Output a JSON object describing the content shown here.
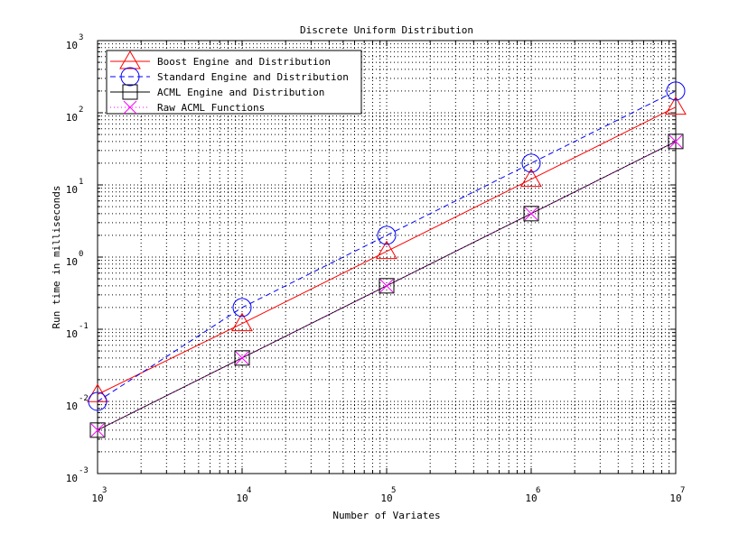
{
  "chart_data": {
    "type": "line",
    "title": "Discrete Uniform Distribution",
    "xlabel": "Number of Variates",
    "ylabel": "Run time in milliseconds",
    "xscale": "log",
    "yscale": "log",
    "xlim": [
      1000,
      10000000
    ],
    "ylim": [
      0.001,
      1000
    ],
    "grid": true,
    "legend_position": "top-left",
    "x_ticks": [
      {
        "value": 1000,
        "base": "10",
        "exp": "3"
      },
      {
        "value": 10000,
        "base": "10",
        "exp": "4"
      },
      {
        "value": 100000,
        "base": "10",
        "exp": "5"
      },
      {
        "value": 1000000,
        "base": "10",
        "exp": "6"
      },
      {
        "value": 10000000,
        "base": "10",
        "exp": "7"
      }
    ],
    "y_ticks": [
      {
        "value": 0.001,
        "base": "10",
        "exp": "-3"
      },
      {
        "value": 0.01,
        "base": "10",
        "exp": "-2"
      },
      {
        "value": 0.1,
        "base": "10",
        "exp": "-1"
      },
      {
        "value": 1,
        "base": "10",
        "exp": "0"
      },
      {
        "value": 10,
        "base": "10",
        "exp": "1"
      },
      {
        "value": 100,
        "base": "10",
        "exp": "2"
      },
      {
        "value": 1000,
        "base": "10",
        "exp": "3"
      }
    ],
    "x": [
      1000,
      10000,
      100000,
      1000000,
      10000000
    ],
    "series": [
      {
        "name": "Boost Engine and Distribution",
        "color": "#ff0000",
        "dash": "solid",
        "marker": "triangle",
        "values": [
          0.0125,
          0.12,
          1.2,
          12,
          120
        ]
      },
      {
        "name": "Standard Engine and Distribution",
        "color": "#0000ff",
        "dash": "dashed",
        "marker": "circle",
        "values": [
          0.01,
          0.2,
          2,
          20,
          200
        ]
      },
      {
        "name": "ACML Engine and Distribution",
        "color": "#000000",
        "dash": "solid",
        "marker": "square",
        "values": [
          0.004,
          0.04,
          0.4,
          4,
          40
        ]
      },
      {
        "name": "Raw ACML Functions",
        "color": "#ff00ff",
        "dash": "dotted",
        "marker": "x",
        "values": [
          0.004,
          0.04,
          0.4,
          4,
          40
        ]
      }
    ]
  }
}
